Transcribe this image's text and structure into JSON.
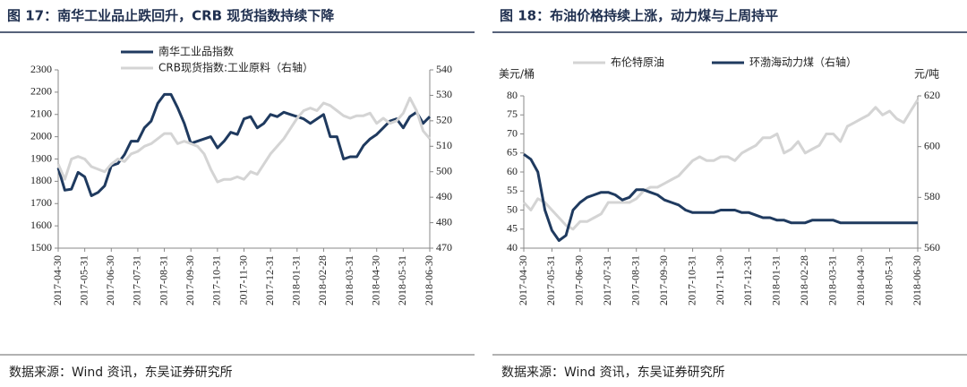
{
  "chart_data": [
    {
      "type": "line",
      "title": "图 17：南华工业品止跌回升，CRB 现货指数持续下降",
      "source": "数据来源：Wind 资讯，东吴证券研究所",
      "legend": "top-left",
      "categories": [
        "2017-04-30",
        null,
        null,
        null,
        "2017-05-31",
        null,
        null,
        null,
        "2017-06-30",
        null,
        null,
        null,
        "2017-07-31",
        null,
        null,
        null,
        "2017-08-31",
        null,
        null,
        null,
        "2017-09-30",
        null,
        null,
        null,
        "2017-10-31",
        null,
        null,
        null,
        "2017-11-30",
        null,
        null,
        null,
        "2017-12-31",
        null,
        null,
        null,
        "2018-01-31",
        null,
        null,
        null,
        "2018-02-28",
        null,
        null,
        null,
        "2018-03-31",
        null,
        null,
        null,
        "2018-04-30",
        null,
        null,
        null,
        "2018-05-31",
        null,
        null,
        null,
        "2018-06-30"
      ],
      "ylim": [
        1500,
        2300
      ],
      "yticks": [
        1500,
        1600,
        1700,
        1800,
        1900,
        2000,
        2100,
        2200,
        2300
      ],
      "y2lim": [
        470,
        540
      ],
      "y2ticks": [
        470,
        480,
        490,
        500,
        510,
        520,
        530,
        540
      ],
      "series": [
        {
          "name": "南华工业品指数",
          "color": "#1f3a5f",
          "values": [
            1860,
            1760,
            1765,
            1840,
            1820,
            1735,
            1750,
            1780,
            1870,
            1880,
            1920,
            1980,
            1980,
            2040,
            2070,
            2150,
            2190,
            2190,
            2130,
            2060,
            1970,
            1980,
            1990,
            2000,
            1950,
            1980,
            2020,
            2010,
            2080,
            2090,
            2040,
            2060,
            2100,
            2090,
            2110,
            2100,
            2090,
            2080,
            2060,
            2080,
            2100,
            2000,
            2000,
            1900,
            1910,
            1910,
            1960,
            1990,
            2010,
            2040,
            2070,
            2080,
            2040,
            2090,
            2110,
            2060,
            2090
          ]
        },
        {
          "name": "CRB现货指数:工业原料（右轴）",
          "color": "#d4d4d4",
          "axis": "y2",
          "values": [
            503,
            497,
            505,
            506,
            505,
            502,
            501,
            500,
            503,
            505,
            504,
            507,
            508,
            510,
            511,
            513,
            515,
            515,
            511,
            512,
            511,
            510,
            507,
            501,
            496,
            497,
            497,
            498,
            497,
            500,
            499,
            503,
            507,
            510,
            513,
            517,
            521,
            524,
            525,
            524,
            527,
            526,
            524,
            522,
            521,
            522,
            522,
            523,
            519,
            521,
            519,
            520,
            523,
            529,
            524,
            516,
            513
          ]
        }
      ]
    },
    {
      "type": "line",
      "title": "图 18：布油价格持续上涨，动力煤与上周持平",
      "source": "数据来源：Wind 资讯，东吴证券研究所",
      "legend": "top",
      "y_label": "美元/桶",
      "y2_label": "元/吨",
      "categories": [
        "2017-04-30",
        null,
        null,
        null,
        "2017-05-31",
        null,
        null,
        null,
        "2017-06-30",
        null,
        null,
        null,
        "2017-07-31",
        null,
        null,
        null,
        "2017-08-31",
        null,
        null,
        null,
        "2017-09-30",
        null,
        null,
        null,
        "2017-10-31",
        null,
        null,
        null,
        "2017-11-30",
        null,
        null,
        null,
        "2017-12-31",
        null,
        null,
        null,
        "2018-01-31",
        null,
        null,
        null,
        "2018-02-28",
        null,
        null,
        null,
        "2018-03-31",
        null,
        null,
        null,
        "2018-04-30",
        null,
        null,
        null,
        "2018-05-31",
        null,
        null,
        null,
        "2018-06-30"
      ],
      "ylim": [
        40,
        80
      ],
      "yticks": [
        40,
        45,
        50,
        55,
        60,
        65,
        70,
        75,
        80
      ],
      "y2lim": [
        560,
        620
      ],
      "y2ticks": [
        560,
        580,
        600,
        620
      ],
      "series": [
        {
          "name": "布伦特原油",
          "color": "#d4d4d4",
          "values": [
            52,
            50,
            53,
            52,
            50,
            48,
            46,
            45,
            47,
            47,
            48,
            49,
            52,
            52,
            52,
            52,
            53,
            55,
            56,
            56,
            57,
            58,
            59,
            61,
            63,
            64,
            63,
            63,
            64,
            64,
            63,
            65,
            66,
            67,
            69,
            69,
            70,
            65,
            66,
            68,
            65,
            66,
            67,
            70,
            70,
            68,
            72,
            73,
            74,
            75,
            77,
            75,
            76,
            74,
            73,
            76,
            79
          ]
        },
        {
          "name": "环渤海动力煤（右轴）",
          "color": "#1f3a5f",
          "axis": "y2",
          "values": [
            597,
            595,
            590,
            575,
            567,
            563,
            565,
            575,
            578,
            580,
            581,
            582,
            582,
            581,
            579,
            580,
            583,
            583,
            582,
            581,
            579,
            578,
            577,
            575,
            574,
            574,
            574,
            574,
            575,
            575,
            575,
            574,
            574,
            573,
            572,
            572,
            571,
            571,
            570,
            570,
            570,
            571,
            571,
            571,
            571,
            570,
            570,
            570,
            570,
            570,
            570,
            570,
            570,
            570,
            570,
            570,
            570
          ]
        }
      ]
    }
  ]
}
